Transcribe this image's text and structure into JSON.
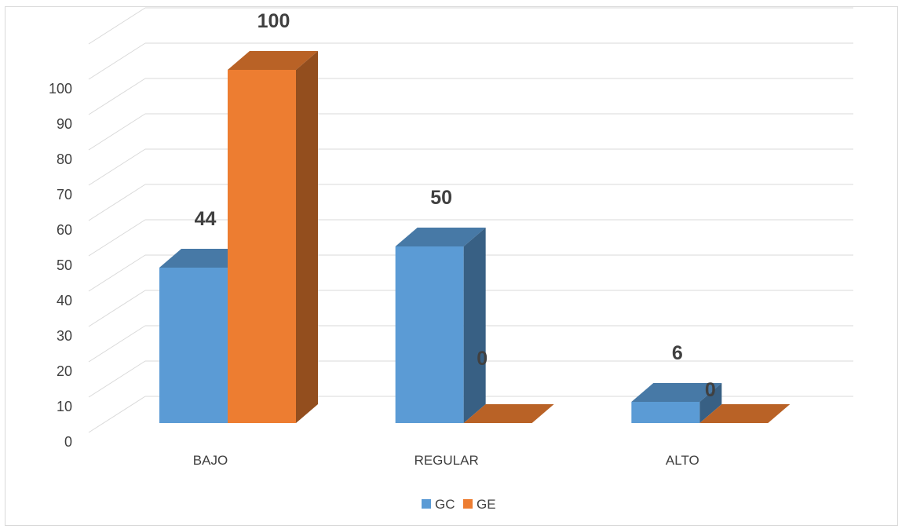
{
  "chart_data": {
    "type": "bar",
    "categories": [
      "BAJO",
      "REGULAR",
      "ALTO"
    ],
    "series": [
      {
        "name": "GC",
        "values": [
          44,
          50,
          6
        ],
        "color": "#5B9BD5"
      },
      {
        "name": "GE",
        "values": [
          100,
          0,
          0
        ],
        "color": "#ED7D31"
      }
    ],
    "data_labels": [
      [
        "44",
        "50",
        "6"
      ],
      [
        "100",
        "0",
        "0"
      ]
    ],
    "y_ticks": [
      "0",
      "10",
      "20",
      "30",
      "40",
      "50",
      "60",
      "70",
      "80",
      "90",
      "100"
    ],
    "ylim": [
      0,
      110
    ],
    "grid": true,
    "style": "3d-column",
    "legend": "bottom",
    "title": "",
    "xlabel": "",
    "ylabel": ""
  }
}
